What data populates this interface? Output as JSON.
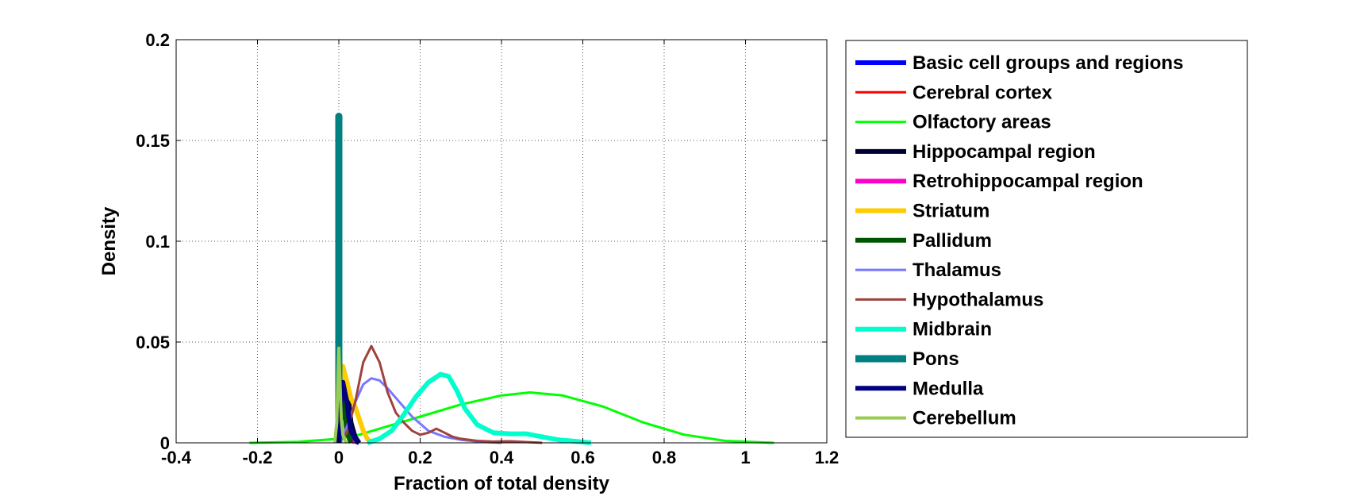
{
  "chart_data": {
    "type": "line",
    "title": "",
    "xlabel": "Fraction of total density",
    "ylabel": "Density",
    "xlim": [
      -0.4,
      1.2
    ],
    "ylim": [
      0,
      0.2
    ],
    "xticks": [
      "-0.4",
      "-0.2",
      "0",
      "0.2",
      "0.4",
      "0.6",
      "0.8",
      "1",
      "1.2"
    ],
    "yticks": [
      "0",
      "0.05",
      "0.1",
      "0.15",
      "0.2"
    ],
    "grid": true,
    "legend_position": "right-outside",
    "series": [
      {
        "name": "Basic cell groups and regions",
        "color": "#0000FF",
        "width": 6,
        "x": [
          0.0,
          0.005,
          0.01,
          0.015,
          0.02,
          0.03,
          0.04,
          0.05
        ],
        "y": [
          0,
          0.012,
          0.022,
          0.018,
          0.01,
          0.004,
          0.001,
          0
        ]
      },
      {
        "name": "Cerebral cortex",
        "color": "#FF0000",
        "width": 3,
        "x": [
          0.0,
          0.005,
          0.01,
          0.015,
          0.02,
          0.025,
          0.03,
          0.04
        ],
        "y": [
          0,
          0.015,
          0.03,
          0.02,
          0.01,
          0.005,
          0.002,
          0
        ]
      },
      {
        "name": "Olfactory areas",
        "color": "#00FF00",
        "width": 3,
        "x": [
          -0.22,
          -0.1,
          0.0,
          0.05,
          0.1,
          0.2,
          0.3,
          0.4,
          0.47,
          0.55,
          0.65,
          0.75,
          0.85,
          0.95,
          1.07
        ],
        "y": [
          0,
          0.0005,
          0.002,
          0.004,
          0.007,
          0.013,
          0.019,
          0.0235,
          0.025,
          0.0235,
          0.018,
          0.01,
          0.004,
          0.001,
          0
        ]
      },
      {
        "name": "Hippocampal region",
        "color": "#000033",
        "width": 6,
        "x": [
          0.0,
          0.005,
          0.01,
          0.015,
          0.02,
          0.025,
          0.03,
          0.04,
          0.05
        ],
        "y": [
          0,
          0.02,
          0.032,
          0.025,
          0.03,
          0.02,
          0.01,
          0.003,
          0
        ]
      },
      {
        "name": "Retrohippocampal region",
        "color": "#FF00CC",
        "width": 6,
        "x": [
          0.0,
          0.005,
          0.01,
          0.015,
          0.02,
          0.03,
          0.04
        ],
        "y": [
          0,
          0.015,
          0.025,
          0.018,
          0.01,
          0.003,
          0
        ]
      },
      {
        "name": "Striatum",
        "color": "#FFCC00",
        "width": 6,
        "x": [
          0.0,
          0.005,
          0.01,
          0.02,
          0.03,
          0.04,
          0.05,
          0.06,
          0.07,
          0.08
        ],
        "y": [
          0,
          0.025,
          0.038,
          0.03,
          0.022,
          0.018,
          0.012,
          0.006,
          0.002,
          0
        ]
      },
      {
        "name": "Pallidum",
        "color": "#005500",
        "width": 6,
        "x": [
          0.0,
          0.005,
          0.01,
          0.015,
          0.02,
          0.03
        ],
        "y": [
          0,
          0.02,
          0.03,
          0.015,
          0.005,
          0
        ]
      },
      {
        "name": "Thalamus",
        "color": "#7777FF",
        "width": 3,
        "x": [
          0.0,
          0.02,
          0.04,
          0.06,
          0.08,
          0.1,
          0.12,
          0.15,
          0.18,
          0.22,
          0.26,
          0.3,
          0.35,
          0.4
        ],
        "y": [
          0,
          0.008,
          0.02,
          0.029,
          0.032,
          0.031,
          0.027,
          0.02,
          0.013,
          0.006,
          0.003,
          0.0015,
          0.0005,
          0
        ]
      },
      {
        "name": "Hypothalamus",
        "color": "#A0423C",
        "width": 3,
        "x": [
          0.0,
          0.02,
          0.04,
          0.06,
          0.08,
          0.1,
          0.12,
          0.14,
          0.16,
          0.18,
          0.2,
          0.22,
          0.24,
          0.26,
          0.28,
          0.3,
          0.34,
          0.38,
          0.42,
          0.46,
          0.5
        ],
        "y": [
          0,
          0.005,
          0.02,
          0.04,
          0.048,
          0.04,
          0.025,
          0.015,
          0.01,
          0.006,
          0.004,
          0.005,
          0.007,
          0.005,
          0.003,
          0.002,
          0.001,
          0.0006,
          0.0008,
          0.0004,
          0
        ]
      },
      {
        "name": "Midbrain",
        "color": "#00FFCC",
        "width": 6,
        "x": [
          0.07,
          0.1,
          0.13,
          0.16,
          0.19,
          0.22,
          0.25,
          0.27,
          0.29,
          0.31,
          0.34,
          0.38,
          0.42,
          0.46,
          0.5,
          0.54,
          0.58,
          0.62
        ],
        "y": [
          0,
          0.002,
          0.006,
          0.014,
          0.023,
          0.03,
          0.034,
          0.033,
          0.026,
          0.017,
          0.009,
          0.005,
          0.0045,
          0.0045,
          0.003,
          0.0015,
          0.0008,
          0
        ]
      },
      {
        "name": "Pons",
        "color": "#008080",
        "width": 9,
        "x": [
          0.0,
          0.0,
          0.0
        ],
        "y": [
          0,
          0.162,
          0
        ]
      },
      {
        "name": "Medulla",
        "color": "#000080",
        "width": 6,
        "x": [
          0.0,
          0.005,
          0.01,
          0.015,
          0.02,
          0.025,
          0.03,
          0.04,
          0.05
        ],
        "y": [
          0,
          0.02,
          0.03,
          0.025,
          0.02,
          0.012,
          0.006,
          0.002,
          0
        ]
      },
      {
        "name": "Cerebellum",
        "color": "#99CC55",
        "width": 4,
        "x": [
          -0.01,
          -0.005,
          0.0,
          0.003,
          0.006,
          0.01,
          0.015,
          0.02
        ],
        "y": [
          0,
          0.01,
          0.047,
          0.03,
          0.012,
          0.004,
          0.001,
          0
        ]
      }
    ]
  }
}
